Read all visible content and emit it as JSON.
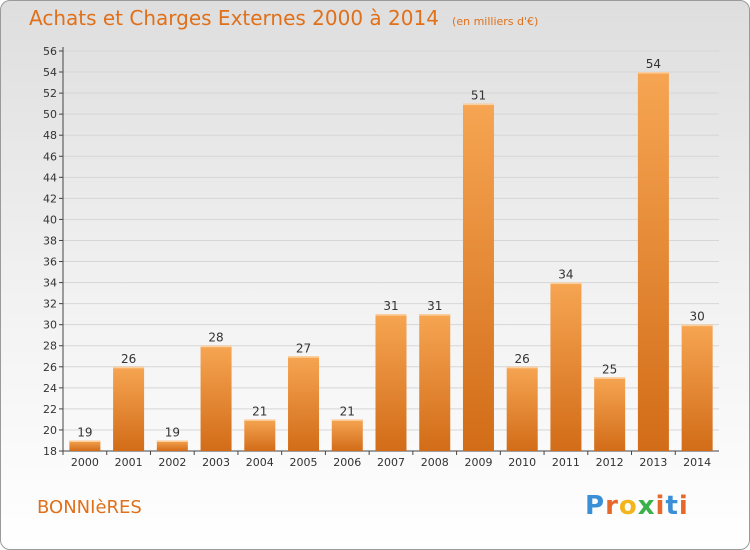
{
  "header": {
    "title": "Achats et Charges Externes 2000 à 2014",
    "subtitle": "(en milliers d'€)"
  },
  "footer": {
    "city": "BONNIèRES",
    "logo_text": "Proxiti",
    "logo_colors": [
      "#3b8fd6",
      "#e8672a",
      "#f2b51c",
      "#3bb14a",
      "#e8672a",
      "#3b8fd6",
      "#e8672a"
    ]
  },
  "chart_data": {
    "type": "bar",
    "title": "Achats et Charges Externes 2000 à 2014",
    "subtitle": "(en milliers d'€)",
    "categories": [
      "2000",
      "2001",
      "2002",
      "2003",
      "2004",
      "2005",
      "2006",
      "2007",
      "2008",
      "2009",
      "2010",
      "2011",
      "2012",
      "2013",
      "2014"
    ],
    "values": [
      19,
      26,
      19,
      28,
      21,
      27,
      21,
      31,
      31,
      51,
      26,
      34,
      25,
      54,
      30
    ],
    "ylim": [
      18,
      56
    ],
    "yticks": [
      18,
      20,
      22,
      24,
      26,
      28,
      30,
      32,
      34,
      36,
      38,
      40,
      42,
      44,
      46,
      48,
      50,
      52,
      54,
      56
    ],
    "grid": true,
    "bar_color_top": "#f6a552",
    "bar_color_bottom": "#d26c18"
  }
}
